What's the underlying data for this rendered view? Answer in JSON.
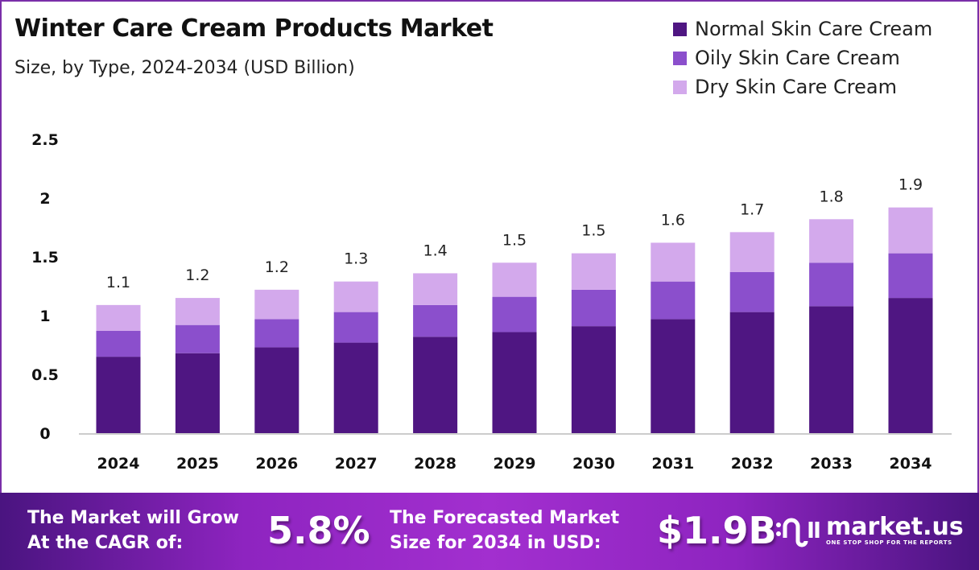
{
  "chart_data": {
    "type": "bar",
    "stacked": true,
    "title": "Winter Care Cream Products Market",
    "subtitle": "Size, by Type, 2024-2034 (USD Billion)",
    "categories": [
      "2024",
      "2025",
      "2026",
      "2027",
      "2028",
      "2029",
      "2030",
      "2031",
      "2032",
      "2033",
      "2034"
    ],
    "series": [
      {
        "name": "Normal Skin Care Cream",
        "color": "#4f1682",
        "values": [
          0.65,
          0.68,
          0.73,
          0.77,
          0.82,
          0.86,
          0.91,
          0.97,
          1.03,
          1.08,
          1.15
        ]
      },
      {
        "name": "Oily Skin Care Cream",
        "color": "#8b4fcc",
        "values": [
          0.22,
          0.24,
          0.24,
          0.26,
          0.27,
          0.3,
          0.31,
          0.32,
          0.34,
          0.37,
          0.38
        ]
      },
      {
        "name": "Dry Skin Care Cream",
        "color": "#d3a9ec",
        "values": [
          0.22,
          0.23,
          0.25,
          0.26,
          0.27,
          0.29,
          0.31,
          0.33,
          0.34,
          0.37,
          0.39
        ]
      }
    ],
    "total_labels": [
      "1.1",
      "1.2",
      "1.2",
      "1.3",
      "1.4",
      "1.5",
      "1.5",
      "1.6",
      "1.7",
      "1.8",
      "1.9"
    ],
    "yticks": [
      "0",
      "0.5",
      "1",
      "1.5",
      "2",
      "2.5"
    ],
    "ylim": [
      0,
      2.5
    ],
    "xlabel": "",
    "ylabel": "",
    "grid": false,
    "legend": "top-right"
  },
  "banner": {
    "cagr_text_1": "The Market will Grow",
    "cagr_text_2": "At the CAGR of:",
    "cagr_value": "5.8%",
    "forecast_text_1": "The Forecasted Market",
    "forecast_text_2": "Size for 2034 in USD:",
    "forecast_value": "$1.9B",
    "logo_name": "market.us",
    "logo_tagline": "ONE STOP SHOP FOR THE REPORTS"
  }
}
